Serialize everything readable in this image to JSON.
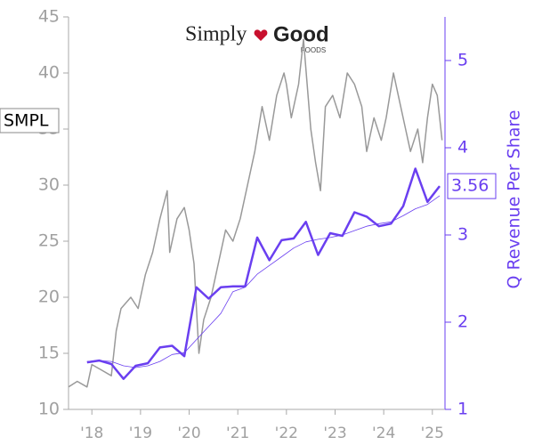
{
  "chart_data": {
    "type": "line",
    "logo": {
      "word1": "Simply",
      "word2": "Good",
      "sub": "FOODS"
    },
    "y2label": "Q Revenue Per Share",
    "xlim": [
      2017.52,
      2025.26
    ],
    "xticks": [
      {
        "value": 2018,
        "label": "'18"
      },
      {
        "value": 2019,
        "label": "'19"
      },
      {
        "value": 2020,
        "label": "'20"
      },
      {
        "value": 2021,
        "label": "'21"
      },
      {
        "value": 2022,
        "label": "'22"
      },
      {
        "value": 2023,
        "label": "'23"
      },
      {
        "value": 2024,
        "label": "'24"
      },
      {
        "value": 2025,
        "label": "'25"
      }
    ],
    "ylim": [
      10,
      45
    ],
    "yticks": [
      10,
      15,
      20,
      25,
      30,
      35,
      40,
      45
    ],
    "y2lim": [
      1,
      5.5
    ],
    "y2ticks": [
      1,
      2,
      3,
      4,
      5
    ],
    "series": [
      {
        "name": "SMPL",
        "color": "#999999",
        "width": 1.5,
        "x": [
          2017.52,
          2017.7,
          2017.9,
          2018.0,
          2018.2,
          2018.4,
          2018.5,
          2018.6,
          2018.8,
          2018.95,
          2019.1,
          2019.25,
          2019.4,
          2019.55,
          2019.6,
          2019.75,
          2019.9,
          2020.0,
          2020.1,
          2020.2,
          2020.3,
          2020.45,
          2020.6,
          2020.75,
          2020.9,
          2021.05,
          2021.2,
          2021.35,
          2021.5,
          2021.65,
          2021.8,
          2021.95,
          2022.0,
          2022.1,
          2022.25,
          2022.35,
          2022.5,
          2022.6,
          2022.7,
          2022.8,
          2022.95,
          2023.1,
          2023.25,
          2023.4,
          2023.55,
          2023.65,
          2023.8,
          2023.95,
          2024.05,
          2024.2,
          2024.3,
          2024.45,
          2024.55,
          2024.7,
          2024.8,
          2024.9,
          2025.0,
          2025.1,
          2025.2
        ],
        "values": [
          12,
          12.5,
          12,
          14,
          13.5,
          13,
          17,
          19,
          20,
          19,
          22,
          24,
          27,
          29.5,
          24,
          27,
          28,
          26,
          23,
          15,
          18,
          20,
          23,
          26,
          25,
          27,
          30,
          33,
          37,
          34,
          38,
          40,
          39,
          36,
          39,
          43,
          35,
          32,
          29.5,
          37,
          38,
          36,
          40,
          39,
          37,
          33,
          36,
          34,
          36,
          40,
          38,
          35,
          33,
          35,
          32,
          36,
          39,
          38,
          34
        ]
      },
      {
        "color": "#6a3ff0",
        "width": 2.5,
        "axis": "y2",
        "x": [
          2017.9,
          2018.15,
          2018.4,
          2018.65,
          2018.9,
          2019.15,
          2019.4,
          2019.65,
          2019.9,
          2020.15,
          2020.4,
          2020.65,
          2020.9,
          2021.15,
          2021.4,
          2021.65,
          2021.9,
          2022.15,
          2022.4,
          2022.65,
          2022.9,
          2023.15,
          2023.4,
          2023.65,
          2023.9,
          2024.15,
          2024.4,
          2024.65,
          2024.9,
          2025.15
        ],
        "values": [
          1.54,
          1.56,
          1.52,
          1.35,
          1.5,
          1.53,
          1.71,
          1.73,
          1.61,
          2.4,
          2.27,
          2.4,
          2.41,
          2.41,
          2.97,
          2.71,
          2.94,
          2.96,
          3.15,
          2.77,
          3.02,
          2.99,
          3.26,
          3.21,
          3.1,
          3.13,
          3.33,
          3.76,
          3.38,
          3.56
        ]
      },
      {
        "color": "#6a3ff0",
        "width": 0.8,
        "axis": "y2",
        "x": [
          2017.9,
          2018.15,
          2018.4,
          2018.65,
          2018.9,
          2019.15,
          2019.4,
          2019.65,
          2019.9,
          2020.15,
          2020.4,
          2020.65,
          2020.9,
          2021.15,
          2021.4,
          2021.65,
          2021.9,
          2022.15,
          2022.4,
          2022.65,
          2022.9,
          2023.15,
          2023.4,
          2023.65,
          2023.9,
          2024.15,
          2024.4,
          2024.65,
          2024.9,
          2025.15
        ],
        "values": [
          1.55,
          1.56,
          1.55,
          1.5,
          1.48,
          1.5,
          1.55,
          1.63,
          1.65,
          1.8,
          1.95,
          2.1,
          2.35,
          2.4,
          2.55,
          2.65,
          2.75,
          2.85,
          2.92,
          2.95,
          2.97,
          3.0,
          3.05,
          3.1,
          3.13,
          3.15,
          3.22,
          3.3,
          3.35,
          3.45
        ]
      }
    ]
  }
}
